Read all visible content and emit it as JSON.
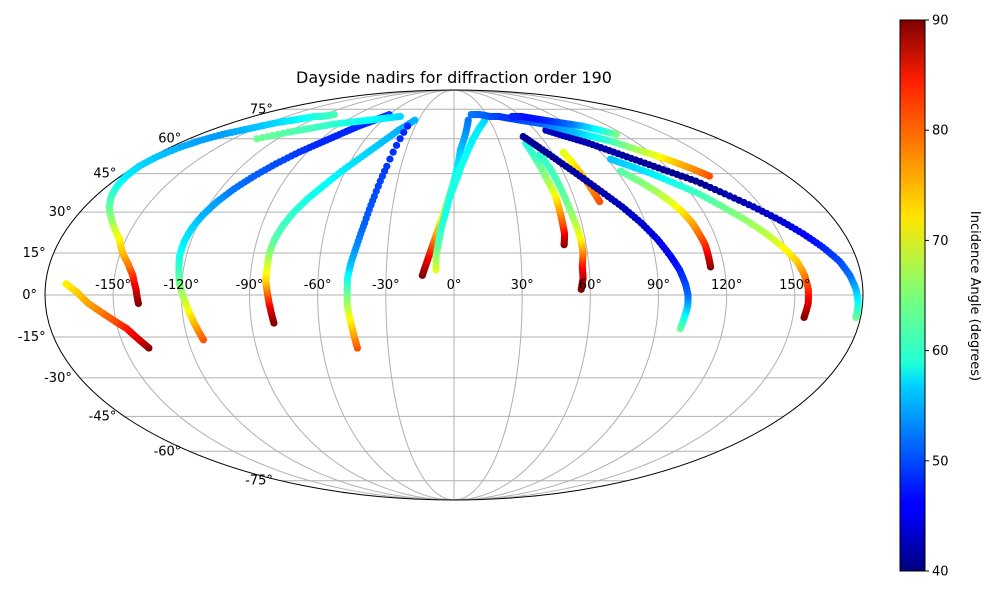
{
  "chart_data": {
    "type": "scatter",
    "projection": "mollweide",
    "title": "Dayside nadirs for diffraction order 190",
    "x_tick_labels": [
      "-150°",
      "-120°",
      "-90°",
      "-60°",
      "-30°",
      "0°",
      "30°",
      "60°",
      "90°",
      "120°",
      "150°"
    ],
    "x_tick_values": [
      -150,
      -120,
      -90,
      -60,
      -30,
      0,
      30,
      60,
      90,
      120,
      150
    ],
    "y_tick_labels": [
      "-75°",
      "-60°",
      "-45°",
      "-30°",
      "-15°",
      "0°",
      "15°",
      "30°",
      "45°",
      "60°",
      "75°"
    ],
    "y_tick_values": [
      -75,
      -60,
      -45,
      -30,
      -15,
      0,
      15,
      30,
      45,
      60,
      75
    ],
    "grid": true,
    "xlim": [
      -180,
      180
    ],
    "ylim": [
      -90,
      90
    ],
    "colorbar": {
      "label": "Incidence Angle (degrees)",
      "colormap": "jet",
      "range": [
        40,
        90
      ],
      "tick_labels": [
        "40",
        "50",
        "60",
        "70",
        "80",
        "90"
      ],
      "tick_values": [
        40,
        50,
        60,
        70,
        80,
        90
      ]
    },
    "series": [
      {
        "lon": [
          -139,
          -140,
          -142,
          -145,
          -149,
          -153,
          -158,
          -163,
          -168,
          -172,
          -175,
          -177,
          -178,
          -177,
          -174,
          -170,
          -164,
          -157,
          -150,
          -143,
          -136,
          -130,
          -124,
          -118,
          -111
        ],
        "lat": [
          -3,
          2,
          7,
          11,
          15,
          20,
          24,
          28,
          32,
          36,
          40,
          44,
          48,
          52,
          56,
          59,
          62,
          64,
          66,
          68,
          69,
          70,
          71,
          71,
          72
        ],
        "inc": [
          90,
          86,
          82,
          78,
          75,
          72,
          69,
          66,
          64,
          62,
          60,
          58,
          57,
          56,
          55,
          54,
          54,
          55,
          56,
          57,
          58,
          59,
          60,
          61,
          62
        ]
      },
      {
        "lon": [
          -139,
          -142,
          -146,
          -151,
          -156,
          -161,
          -166,
          -171
        ],
        "lat": [
          -19,
          -16,
          -12,
          -9,
          -6,
          -3,
          1,
          4
        ],
        "inc": [
          90,
          86,
          83,
          80,
          78,
          76,
          74,
          72
        ]
      },
      {
        "lon": [
          -113,
          -115,
          -117,
          -119,
          -121,
          -122,
          -123,
          -123,
          -122,
          -120,
          -117,
          -113,
          -108,
          -102,
          -95,
          -88,
          -81,
          -74,
          -67,
          -60
        ],
        "lat": [
          -16,
          -11,
          -6,
          -1,
          4,
          9,
          14,
          19,
          24,
          29,
          34,
          39,
          44,
          49,
          54,
          58,
          62,
          66,
          69,
          72
        ],
        "inc": [
          80,
          76,
          72,
          68,
          65,
          62,
          60,
          58,
          57,
          55,
          54,
          52,
          51,
          50,
          49,
          48,
          48,
          48,
          48,
          49
        ]
      },
      {
        "lon": [
          -80,
          -81,
          -82,
          -83,
          -83,
          -83,
          -82,
          -80,
          -77,
          -73,
          -68,
          -62,
          -55,
          -48,
          -41,
          -33
        ],
        "lat": [
          -10,
          -5,
          0,
          5,
          10,
          15,
          20,
          25,
          30,
          35,
          40,
          46,
          52,
          58,
          64,
          69
        ],
        "inc": [
          90,
          86,
          80,
          74,
          70,
          66,
          63,
          62,
          61,
          60,
          59,
          58,
          57,
          56,
          55,
          55
        ]
      },
      {
        "lon": [
          -44,
          -45,
          -46,
          -47,
          -47,
          -47,
          -46,
          -44,
          -42,
          -40,
          -38,
          -36
        ],
        "lat": [
          -19,
          -14,
          -9,
          -4,
          1,
          6,
          11,
          18,
          26,
          36,
          48,
          66
        ],
        "inc": [
          80,
          76,
          72,
          68,
          64,
          60,
          56,
          53,
          51,
          50,
          49,
          48
        ]
      },
      {
        "lon": [
          -14,
          -12,
          -10,
          -8,
          -6,
          -4,
          -2,
          0,
          2,
          4,
          8,
          12
        ],
        "lat": [
          7,
          12,
          17,
          22,
          27,
          32,
          37,
          42,
          48,
          55,
          62,
          69
        ],
        "inc": [
          90,
          86,
          81,
          76,
          72,
          68,
          64,
          60,
          58,
          56,
          54,
          52
        ]
      },
      {
        "lon": [
          -8,
          -8,
          -7,
          -6,
          -4,
          -2,
          1,
          4,
          8,
          13,
          19,
          26
        ],
        "lat": [
          9,
          14,
          19,
          24,
          30,
          36,
          42,
          48,
          54,
          60,
          65,
          69
        ],
        "inc": [
          70,
          66,
          63,
          61,
          60,
          60,
          60,
          60,
          59,
          58,
          58,
          57
        ]
      },
      {
        "lon": [
          50,
          51,
          51,
          51,
          51,
          50,
          49,
          48,
          47
        ],
        "lat": [
          18,
          22,
          26,
          31,
          36,
          41,
          46,
          52,
          58
        ],
        "inc": [
          90,
          85,
          80,
          76,
          72,
          68,
          65,
          62,
          60
        ]
      },
      {
        "lon": [
          56,
          57,
          57,
          58,
          58,
          57,
          56,
          55,
          54,
          52
        ],
        "lat": [
          2,
          6,
          10,
          15,
          20,
          26,
          32,
          39,
          46,
          53
        ],
        "inc": [
          90,
          87,
          84,
          78,
          72,
          68,
          65,
          63,
          62,
          61
        ]
      },
      {
        "lon": [
          72,
          71,
          70,
          69,
          68,
          67
        ],
        "lat": [
          34,
          38,
          42,
          46,
          50,
          54
        ],
        "inc": [
          80,
          78,
          76,
          74,
          72,
          70
        ]
      },
      {
        "lon": [
          101,
          102,
          103,
          103,
          102,
          100,
          97,
          93,
          88,
          82,
          75,
          68,
          61,
          54,
          48
        ],
        "lat": [
          -12,
          -8,
          -4,
          0,
          4,
          9,
          14,
          20,
          26,
          32,
          38,
          44,
          50,
          56,
          61
        ],
        "inc": [
          64,
          60,
          56,
          52,
          50,
          48,
          46,
          45,
          44,
          43,
          42,
          42,
          41,
          41,
          41
        ]
      },
      {
        "lon": [
          114,
          114,
          114,
          113,
          112,
          110,
          107,
          103,
          98,
          92
        ],
        "lat": [
          10,
          14,
          18,
          22,
          26,
          30,
          34,
          38,
          42,
          46
        ],
        "inc": [
          90,
          86,
          82,
          79,
          76,
          73,
          70,
          67,
          65,
          63
        ]
      },
      {
        "lon": [
          155,
          156,
          156,
          155,
          153,
          149,
          144,
          138,
          131,
          124,
          116,
          108,
          100,
          92
        ],
        "lat": [
          -8,
          -3,
          2,
          7,
          12,
          17,
          22,
          27,
          32,
          37,
          41,
          45,
          48,
          51
        ],
        "inc": [
          90,
          86,
          82,
          78,
          74,
          71,
          68,
          66,
          64,
          62,
          60,
          58,
          57,
          56
        ]
      },
      {
        "lon": [
          178,
          178,
          177,
          175,
          172,
          167,
          161,
          154,
          146,
          137,
          128,
          118,
          108,
          98,
          88,
          78,
          68
        ],
        "lat": [
          -8,
          -3,
          2,
          7,
          12,
          17,
          22,
          27,
          32,
          37,
          42,
          46,
          50,
          54,
          58,
          61,
          64
        ],
        "inc": [
          64,
          60,
          56,
          52,
          50,
          48,
          46,
          44,
          43,
          42,
          41,
          41,
          41,
          42,
          42,
          43,
          43
        ]
      },
      {
        "lon": [
          138,
          133,
          127,
          120,
          112,
          104,
          96,
          88,
          80,
          72,
          64,
          56,
          48,
          40,
          32,
          24,
          16
        ],
        "lat": [
          44,
          47,
          50,
          53,
          56,
          59,
          61,
          63,
          65,
          67,
          68,
          69,
          70,
          71,
          71,
          72,
          72
        ],
        "inc": [
          80,
          77,
          74,
          70,
          66,
          62,
          59,
          56,
          54,
          52,
          51,
          50,
          49,
          49,
          50,
          51,
          52
        ]
      },
      {
        "lon": [
          115,
          108,
          100,
          92,
          84,
          76,
          68,
          60,
          52
        ],
        "lat": [
          62,
          64,
          66,
          67,
          68,
          69,
          70,
          71,
          71
        ],
        "inc": [
          65,
          60,
          56,
          52,
          50,
          48,
          47,
          47,
          48
        ]
      },
      {
        "lon": [
          -134,
          -120,
          -108,
          -96,
          -84,
          -72,
          -60,
          -48
        ],
        "lat": [
          60,
          63,
          65,
          67,
          68,
          69,
          70,
          71
        ],
        "inc": [
          64,
          63,
          62,
          61,
          60,
          59,
          58,
          57
        ]
      }
    ]
  }
}
